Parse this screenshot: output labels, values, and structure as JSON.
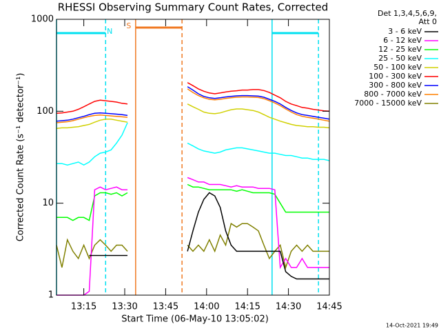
{
  "chart_data": {
    "type": "line",
    "title": "RHESSI Observing Summary Count Rates, Corrected",
    "x_label": "Start Time (06-May-10 13:05:02)",
    "y_label": "Corrected Count Rate (s⁻¹ detector⁻¹)",
    "legend_title": [
      "Det 1,3,4,5,6,9,",
      "Att 0"
    ],
    "footer": "14-Oct-2021 19:49",
    "log_y": true,
    "legend": "right",
    "xlim": [
      785,
      885
    ],
    "xticks": [
      {
        "value": 795,
        "label": "13:15"
      },
      {
        "value": 810,
        "label": "13:30"
      },
      {
        "value": 825,
        "label": "13:45"
      },
      {
        "value": 840,
        "label": "14:00"
      },
      {
        "value": 855,
        "label": "14:15"
      },
      {
        "value": 870,
        "label": "14:30"
      },
      {
        "value": 885,
        "label": "14:45"
      }
    ],
    "ylim": [
      1,
      1000
    ],
    "yticks": [
      1,
      10,
      100,
      1000
    ],
    "regions": [
      {
        "label": "N",
        "start": 785,
        "end": 803,
        "color": "#00e0f0"
      },
      {
        "label": "S",
        "start": 814,
        "end": 831,
        "color": "#f07820"
      },
      {
        "label": null,
        "start": 864,
        "end": 881,
        "color": "#00e0f0"
      }
    ],
    "x": [
      785,
      787,
      789,
      791,
      793,
      795,
      797,
      799,
      801,
      803,
      805,
      807,
      809,
      811,
      813,
      815,
      817,
      819,
      821,
      823,
      825,
      827,
      829,
      831,
      833,
      835,
      837,
      839,
      841,
      843,
      845,
      847,
      849,
      851,
      853,
      855,
      857,
      859,
      861,
      863,
      865,
      867,
      869,
      871,
      873,
      875,
      877,
      879,
      881,
      883,
      885
    ],
    "series": [
      {
        "name": "3 - 6 keV",
        "color": "#000000",
        "values": [
          null,
          null,
          null,
          null,
          null,
          null,
          2.7,
          2.7,
          2.7,
          2.7,
          2.7,
          2.7,
          2.7,
          2.7,
          null,
          null,
          null,
          null,
          null,
          null,
          null,
          null,
          null,
          null,
          3,
          5,
          8,
          11,
          13,
          12,
          9,
          5,
          3.5,
          3,
          3,
          3,
          3,
          3,
          3,
          3,
          3,
          3,
          1.8,
          1.6,
          1.5,
          1.5,
          1.5,
          1.5,
          1.5,
          1.5,
          1.5
        ]
      },
      {
        "name": "6 - 12 keV",
        "color": "#ff00ff",
        "values": [
          1,
          1,
          1,
          1,
          1,
          1,
          1.1,
          14,
          15,
          14,
          14.5,
          15,
          14,
          14,
          null,
          null,
          null,
          null,
          null,
          null,
          null,
          null,
          null,
          null,
          19,
          18,
          17,
          17,
          16,
          16,
          16,
          15.5,
          15,
          15.5,
          15,
          15,
          15,
          14.5,
          14.5,
          14.5,
          14,
          2,
          2.5,
          2,
          2,
          2.5,
          2,
          2,
          2,
          2,
          2
        ]
      },
      {
        "name": "12 - 25 keV",
        "color": "#00ff00",
        "values": [
          7,
          7,
          7,
          6.5,
          7,
          7,
          6.5,
          12,
          13,
          13,
          12.5,
          13,
          12,
          13,
          null,
          null,
          null,
          null,
          null,
          null,
          null,
          null,
          null,
          null,
          16,
          15,
          15,
          14.5,
          14,
          14,
          14,
          14,
          14,
          13.5,
          14,
          13.5,
          13,
          13,
          13,
          13,
          12.5,
          10,
          8,
          8,
          8,
          8,
          8,
          8,
          8,
          8,
          8
        ]
      },
      {
        "name": "25 - 50 keV",
        "color": "#00ffff",
        "values": [
          27,
          27,
          26,
          27,
          28,
          26,
          28,
          32,
          35,
          36,
          38,
          45,
          55,
          75,
          null,
          null,
          null,
          null,
          null,
          null,
          null,
          null,
          null,
          null,
          45,
          42,
          39,
          37,
          36,
          35,
          36,
          38,
          39,
          40,
          40,
          39,
          38,
          37,
          36,
          35,
          35,
          34,
          33,
          33,
          32,
          31,
          31,
          30,
          30,
          30,
          29
        ]
      },
      {
        "name": "50 - 100 keV",
        "color": "#d0d000",
        "values": [
          65,
          66,
          66,
          67,
          68,
          70,
          72,
          76,
          80,
          82,
          82,
          80,
          78,
          76,
          null,
          null,
          null,
          null,
          null,
          null,
          null,
          null,
          null,
          null,
          120,
          112,
          105,
          98,
          95,
          94,
          96,
          100,
          104,
          106,
          106,
          104,
          102,
          98,
          92,
          86,
          82,
          78,
          75,
          72,
          70,
          69,
          68,
          68,
          67,
          67,
          66
        ]
      },
      {
        "name": "100 - 300 keV",
        "color": "#ff0000",
        "values": [
          95,
          96,
          98,
          100,
          105,
          112,
          120,
          128,
          132,
          130,
          128,
          126,
          122,
          120,
          null,
          null,
          null,
          null,
          null,
          null,
          null,
          null,
          null,
          null,
          205,
          190,
          175,
          165,
          158,
          155,
          158,
          162,
          165,
          167,
          170,
          170,
          172,
          172,
          168,
          160,
          150,
          140,
          128,
          120,
          115,
          110,
          108,
          105,
          103,
          101,
          100
        ]
      },
      {
        "name": "300 - 800 keV",
        "color": "#0000ff",
        "values": [
          78,
          79,
          80,
          82,
          85,
          88,
          92,
          95,
          96,
          95,
          94,
          93,
          92,
          90,
          null,
          null,
          null,
          null,
          null,
          null,
          null,
          null,
          null,
          null,
          185,
          170,
          155,
          145,
          140,
          138,
          140,
          143,
          145,
          147,
          148,
          148,
          147,
          146,
          142,
          135,
          128,
          120,
          110,
          102,
          96,
          92,
          90,
          88,
          86,
          84,
          82
        ]
      },
      {
        "name": "800 - 7000 keV",
        "color": "#ff8000",
        "values": [
          75,
          76,
          77,
          79,
          82,
          85,
          88,
          90,
          91,
          90,
          89,
          88,
          87,
          86,
          null,
          null,
          null,
          null,
          null,
          null,
          null,
          null,
          null,
          null,
          175,
          160,
          148,
          140,
          135,
          133,
          135,
          138,
          140,
          142,
          143,
          143,
          142,
          141,
          137,
          130,
          123,
          115,
          106,
          98,
          92,
          88,
          86,
          84,
          82,
          80,
          78
        ]
      },
      {
        "name": "7000 - 15000 keV",
        "color": "#808000",
        "values": [
          3.5,
          2,
          4,
          3,
          2.5,
          3.5,
          2.5,
          3.5,
          4,
          3.5,
          3,
          3.5,
          3.5,
          3,
          null,
          null,
          null,
          null,
          null,
          null,
          null,
          null,
          null,
          null,
          3.5,
          3,
          3.5,
          3,
          4,
          3,
          4.5,
          3.5,
          6,
          5.5,
          6,
          6,
          5.5,
          5,
          3.5,
          2.5,
          3,
          3.5,
          2,
          3,
          3.5,
          3,
          3.5,
          3,
          3,
          3,
          3
        ]
      }
    ]
  }
}
